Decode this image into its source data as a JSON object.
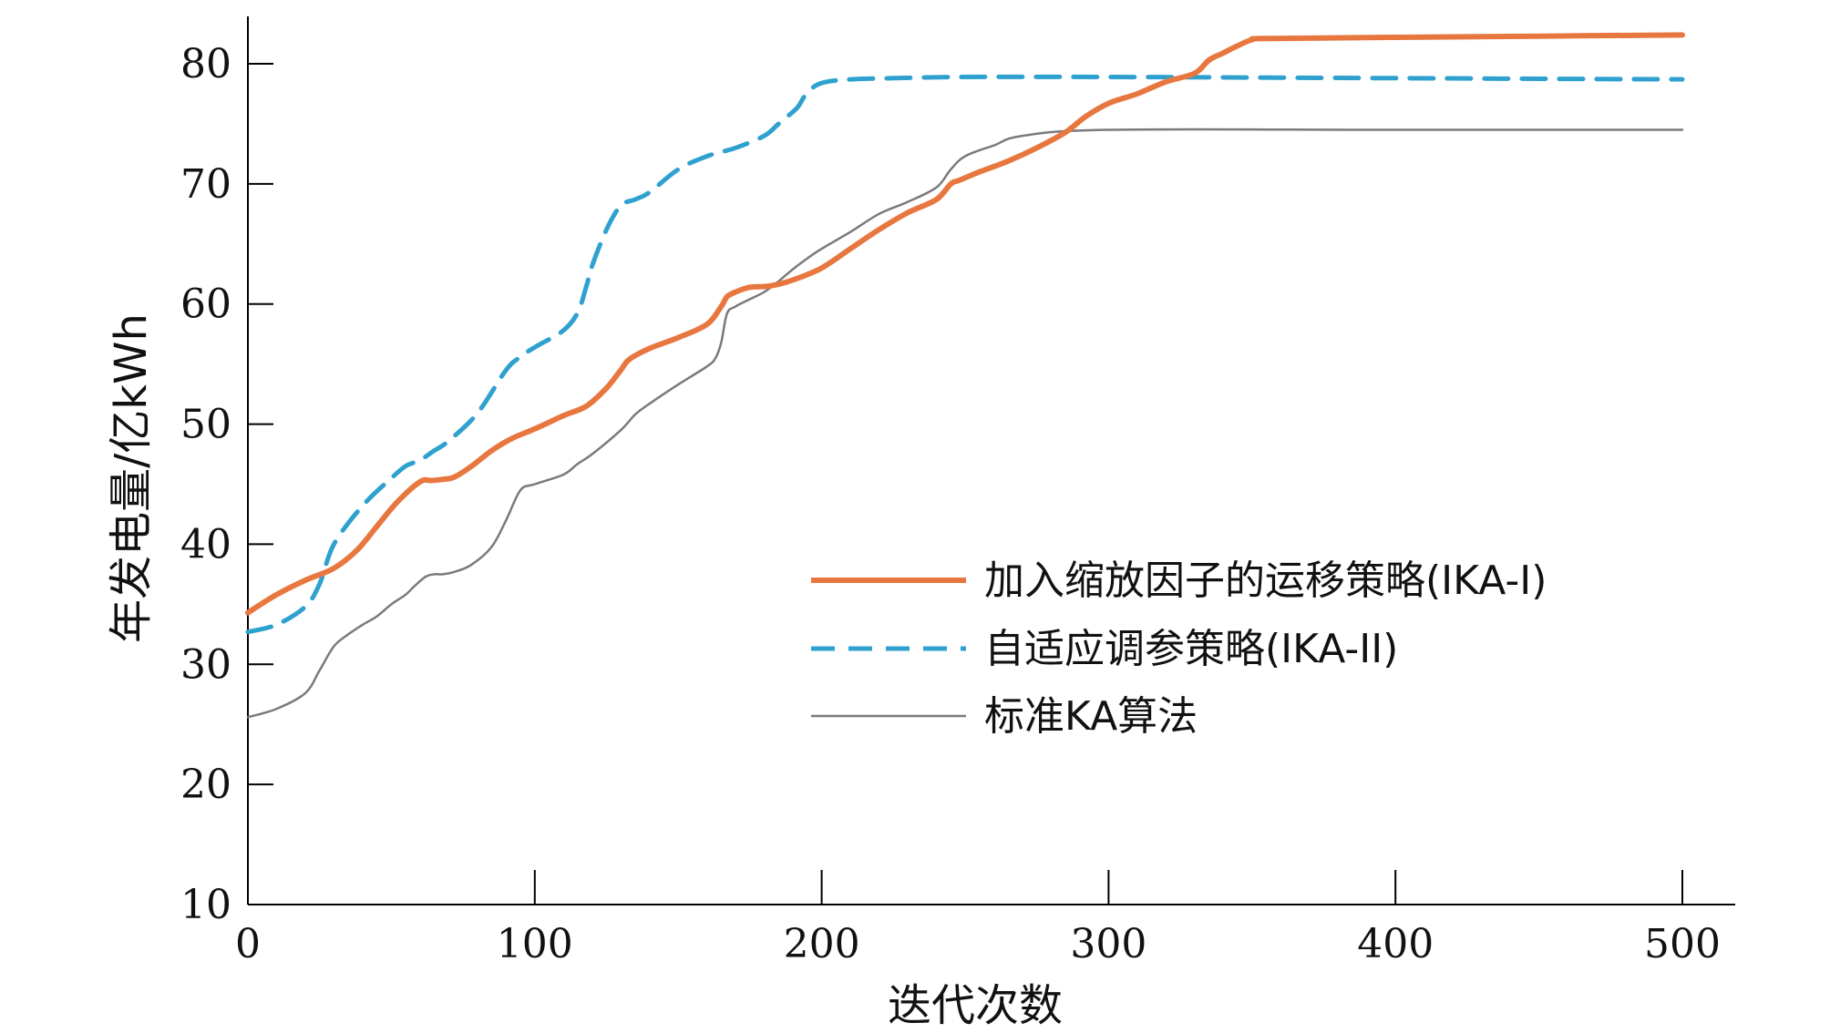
{
  "chart_data": {
    "type": "line",
    "title": "",
    "xlabel": "迭代次数",
    "ylabel": "年发电量/亿kWh",
    "xlim": [
      0,
      515
    ],
    "ylim": [
      10,
      84
    ],
    "xticks": [
      0,
      100,
      200,
      300,
      400,
      500
    ],
    "yticks": [
      10,
      20,
      30,
      40,
      50,
      60,
      70,
      80
    ],
    "grid": false,
    "legend_position": "center-right",
    "series": [
      {
        "name": "加入缩放因子的运移策略(IKA-I)",
        "color": "#e8773f",
        "style": "solid-thick",
        "x": [
          0,
          10,
          20,
          30,
          38,
          45,
          52,
          60,
          64,
          68,
          72,
          78,
          85,
          92,
          100,
          110,
          118,
          125,
          130,
          133,
          140,
          150,
          160,
          165,
          167,
          170,
          175,
          182,
          190,
          200,
          210,
          220,
          230,
          240,
          245,
          248,
          255,
          265,
          275,
          285,
          292,
          300,
          310,
          320,
          330,
          335,
          340,
          345,
          350,
          355,
          400,
          450,
          500
        ],
        "y": [
          34.3,
          35.8,
          37,
          38,
          39.5,
          41.5,
          43.5,
          45.2,
          45.3,
          45.4,
          45.6,
          46.5,
          47.8,
          48.8,
          49.6,
          50.7,
          51.5,
          53,
          54.5,
          55.4,
          56.3,
          57.2,
          58.3,
          59.8,
          60.6,
          61.0,
          61.4,
          61.5,
          62.0,
          63.0,
          64.6,
          66.2,
          67.6,
          68.7,
          70.0,
          70.3,
          71.0,
          71.9,
          73.0,
          74.3,
          75.6,
          76.7,
          77.5,
          78.5,
          79.2,
          80.3,
          80.9,
          81.5,
          82.0,
          82.1,
          82.2,
          82.3,
          82.4
        ]
      },
      {
        "name": "自适应调参策略(IKA-II)",
        "color": "#2fa1cf",
        "style": "dashed",
        "x": [
          0,
          10,
          20,
          25,
          30,
          40,
          50,
          55,
          60,
          65,
          70,
          80,
          90,
          95,
          100,
          110,
          115,
          118,
          120,
          125,
          130,
          135,
          140,
          150,
          160,
          170,
          180,
          185,
          190,
          192,
          195,
          200,
          210,
          225,
          250,
          300,
          400,
          500
        ],
        "y": [
          32.7,
          33.3,
          34.8,
          36.7,
          40.0,
          43.2,
          45.5,
          46.5,
          47.0,
          47.8,
          48.6,
          50.9,
          54.5,
          55.6,
          56.4,
          57.8,
          59.3,
          61.5,
          63.2,
          66.2,
          68.2,
          68.7,
          69.3,
          71.2,
          72.3,
          73.0,
          74.0,
          75.0,
          76.0,
          76.5,
          77.6,
          78.4,
          78.7,
          78.8,
          78.9,
          78.9,
          78.8,
          78.7
        ]
      },
      {
        "name": "标准KA算法",
        "color": "#7a7a7a",
        "style": "solid-thin",
        "x": [
          0,
          10,
          20,
          25,
          30,
          35,
          40,
          45,
          50,
          55,
          58,
          62,
          65,
          68,
          72,
          78,
          85,
          90,
          95,
          100,
          110,
          115,
          120,
          130,
          135,
          140,
          150,
          160,
          163,
          165,
          167,
          170,
          175,
          180,
          185,
          190,
          195,
          200,
          210,
          220,
          230,
          240,
          245,
          250,
          260,
          270,
          300,
          400,
          500
        ],
        "y": [
          25.6,
          26.3,
          27.6,
          29.5,
          31.5,
          32.5,
          33.3,
          34.0,
          35.0,
          35.8,
          36.5,
          37.3,
          37.5,
          37.5,
          37.7,
          38.3,
          39.8,
          42.0,
          44.5,
          45.0,
          45.8,
          46.7,
          47.5,
          49.5,
          50.8,
          51.7,
          53.3,
          54.8,
          55.5,
          56.8,
          59.2,
          59.8,
          60.4,
          61.0,
          61.9,
          62.9,
          63.8,
          64.6,
          66.0,
          67.5,
          68.5,
          69.7,
          71.2,
          72.3,
          73.2,
          74.0,
          74.5,
          74.5,
          74.5
        ]
      }
    ]
  }
}
